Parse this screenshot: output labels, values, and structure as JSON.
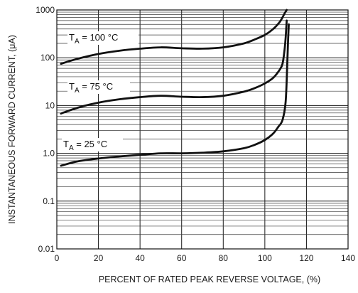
{
  "chart_data": {
    "type": "line",
    "title": "",
    "xlabel": "PERCENT OF RATED PEAK REVERSE VOLTAGE, (%)",
    "ylabel": "INSTANTANEOUS FORWARD CURRENT, (μA)",
    "xlim": [
      0,
      140
    ],
    "ylim": [
      0.01,
      1000
    ],
    "y_scale": "log",
    "grid": true,
    "x_ticks": [
      "0",
      "20",
      "40",
      "60",
      "80",
      "100",
      "120",
      "140"
    ],
    "y_ticks": [
      "0.01",
      "0.1",
      "1.0",
      "10",
      "100",
      "1000"
    ],
    "series": [
      {
        "name": "TA = 100 °C",
        "label_main": "T",
        "label_sub": "A",
        "label_rest": " = 100 °C",
        "x": [
          2,
          10,
          20,
          30,
          40,
          50,
          60,
          70,
          80,
          90,
          95,
          100,
          104,
          107,
          108.5,
          109.5,
          110,
          110.5
        ],
        "y": [
          75,
          95,
          120,
          140,
          155,
          165,
          158,
          155,
          165,
          200,
          240,
          300,
          400,
          550,
          700,
          850,
          920,
          1000
        ]
      },
      {
        "name": "TA = 75 °C",
        "label_main": "T",
        "label_sub": "A",
        "label_rest": " = 75 °C",
        "x": [
          2,
          10,
          20,
          30,
          40,
          50,
          60,
          70,
          80,
          90,
          95,
          100,
          104,
          107,
          108.5,
          109.5,
          110,
          110.5
        ],
        "y": [
          6.8,
          9.0,
          11.5,
          13.5,
          15.0,
          16.0,
          15.3,
          15.0,
          16.0,
          19.5,
          23,
          29,
          38,
          55,
          75,
          150,
          260,
          600
        ]
      },
      {
        "name": "TA = 25 °C",
        "label_main": "T",
        "label_sub": "A",
        "label_rest": " = 25 °C",
        "x": [
          2,
          10,
          20,
          30,
          40,
          50,
          60,
          70,
          80,
          90,
          95,
          100,
          104,
          106.5,
          108.5,
          110,
          110.8,
          111.2,
          111.5
        ],
        "y": [
          0.55,
          0.68,
          0.78,
          0.86,
          0.93,
          1.0,
          1.0,
          1.03,
          1.1,
          1.28,
          1.5,
          1.9,
          2.6,
          3.6,
          5.0,
          12,
          80,
          250,
          500
        ]
      }
    ]
  }
}
